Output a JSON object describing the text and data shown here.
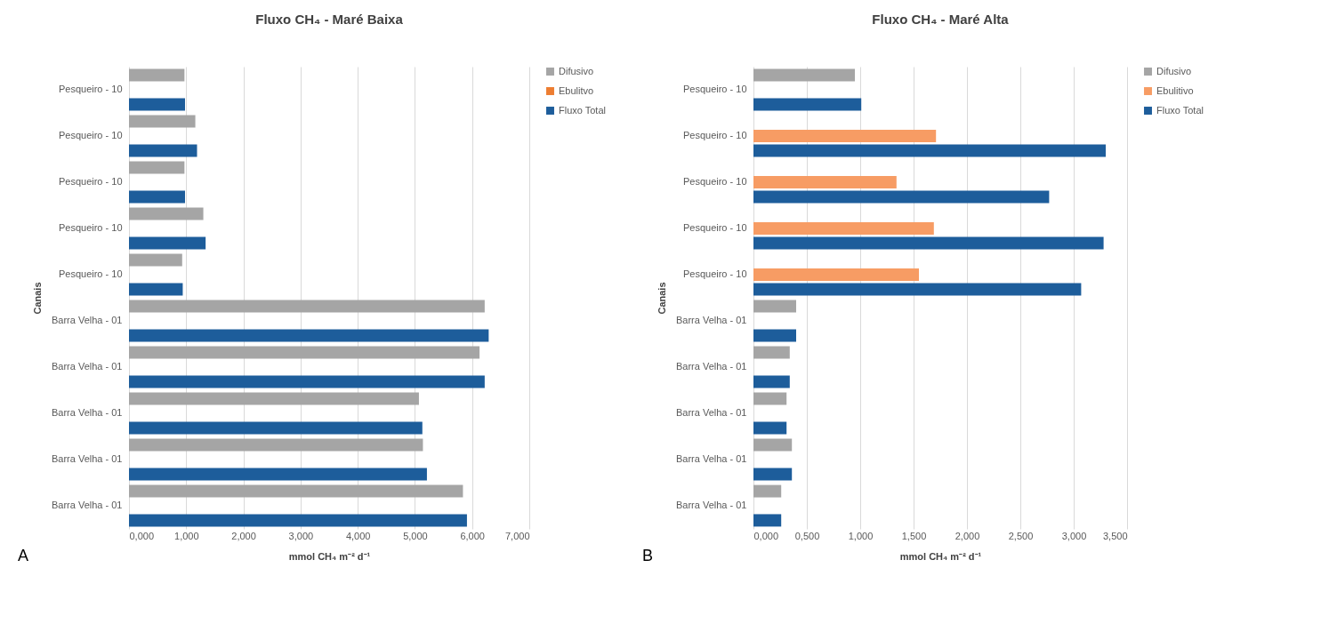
{
  "chart_data": [
    {
      "type": "bar",
      "orientation": "horizontal",
      "title": "Fluxo CH₄ - Maré Baixa",
      "xlabel": "mmol  CH₄ m⁻² d⁻¹",
      "ylabel": "Canais",
      "categories": [
        "Pesqueiro - 10",
        "Pesqueiro - 10",
        "Pesqueiro - 10",
        "Pesqueiro - 10",
        "Pesqueiro - 10",
        "Barra Velha - 01",
        "Barra Velha - 01",
        "Barra Velha - 01",
        "Barra Velha - 01",
        "Barra Velha - 01"
      ],
      "series": [
        {
          "name": "Difusivo",
          "color": "#a5a5a5",
          "values": [
            0.97,
            1.16,
            0.97,
            1.3,
            0.93,
            6.22,
            6.13,
            5.07,
            5.14,
            5.84
          ]
        },
        {
          "name": "Ebulitvo",
          "color": "#ed7d31",
          "values": [
            null,
            null,
            null,
            null,
            null,
            null,
            null,
            null,
            null,
            null
          ]
        },
        {
          "name": "Fluxo Total",
          "color": "#1d5d9b",
          "values": [
            0.98,
            1.19,
            0.98,
            1.34,
            0.94,
            6.29,
            6.22,
            5.13,
            5.21,
            5.91
          ]
        }
      ],
      "xlim": [
        0,
        7
      ],
      "xticks": [
        {
          "value": 0,
          "label": "0,000"
        },
        {
          "value": 1,
          "label": "1,000"
        },
        {
          "value": 2,
          "label": "2,000"
        },
        {
          "value": 3,
          "label": "3,000"
        },
        {
          "value": 4,
          "label": "4,000"
        },
        {
          "value": 5,
          "label": "5,000"
        },
        {
          "value": 6,
          "label": "6,000"
        },
        {
          "value": 7,
          "label": "7,000"
        }
      ],
      "grid": "x",
      "legend": "right",
      "annotations": [
        "A"
      ]
    },
    {
      "type": "bar",
      "orientation": "horizontal",
      "title": "Fluxo CH₄ - Maré Alta",
      "xlabel": "mmol CH₄ m⁻² d⁻¹",
      "ylabel": "Canais",
      "categories": [
        "Pesqueiro - 10",
        "Pesqueiro - 10",
        "Pesqueiro - 10",
        "Pesqueiro - 10",
        "Pesqueiro - 10",
        "Barra Velha - 01",
        "Barra Velha - 01",
        "Barra Velha - 01",
        "Barra Velha - 01",
        "Barra Velha - 01"
      ],
      "series": [
        {
          "name": "Difusivo",
          "color": "#a5a5a5",
          "values": [
            0.95,
            null,
            null,
            null,
            null,
            0.4,
            0.34,
            0.31,
            0.36,
            0.26
          ]
        },
        {
          "name": "Ebulitivo",
          "color": "#f79c64",
          "values": [
            null,
            1.71,
            1.34,
            1.69,
            1.55,
            null,
            null,
            null,
            null,
            null
          ]
        },
        {
          "name": "Fluxo Total",
          "color": "#1d5d9b",
          "values": [
            1.01,
            3.3,
            2.77,
            3.28,
            3.07,
            0.4,
            0.34,
            0.31,
            0.36,
            0.26
          ]
        }
      ],
      "xlim": [
        0,
        3.5
      ],
      "xticks": [
        {
          "value": 0,
          "label": "0,000"
        },
        {
          "value": 0.5,
          "label": "0,500"
        },
        {
          "value": 1,
          "label": "1,000"
        },
        {
          "value": 1.5,
          "label": "1,500"
        },
        {
          "value": 2,
          "label": "2,000"
        },
        {
          "value": 2.5,
          "label": "2,500"
        },
        {
          "value": 3,
          "label": "3,000"
        },
        {
          "value": 3.5,
          "label": "3,500"
        }
      ],
      "grid": "x",
      "legend": "right",
      "annotations": [
        "B"
      ]
    }
  ]
}
